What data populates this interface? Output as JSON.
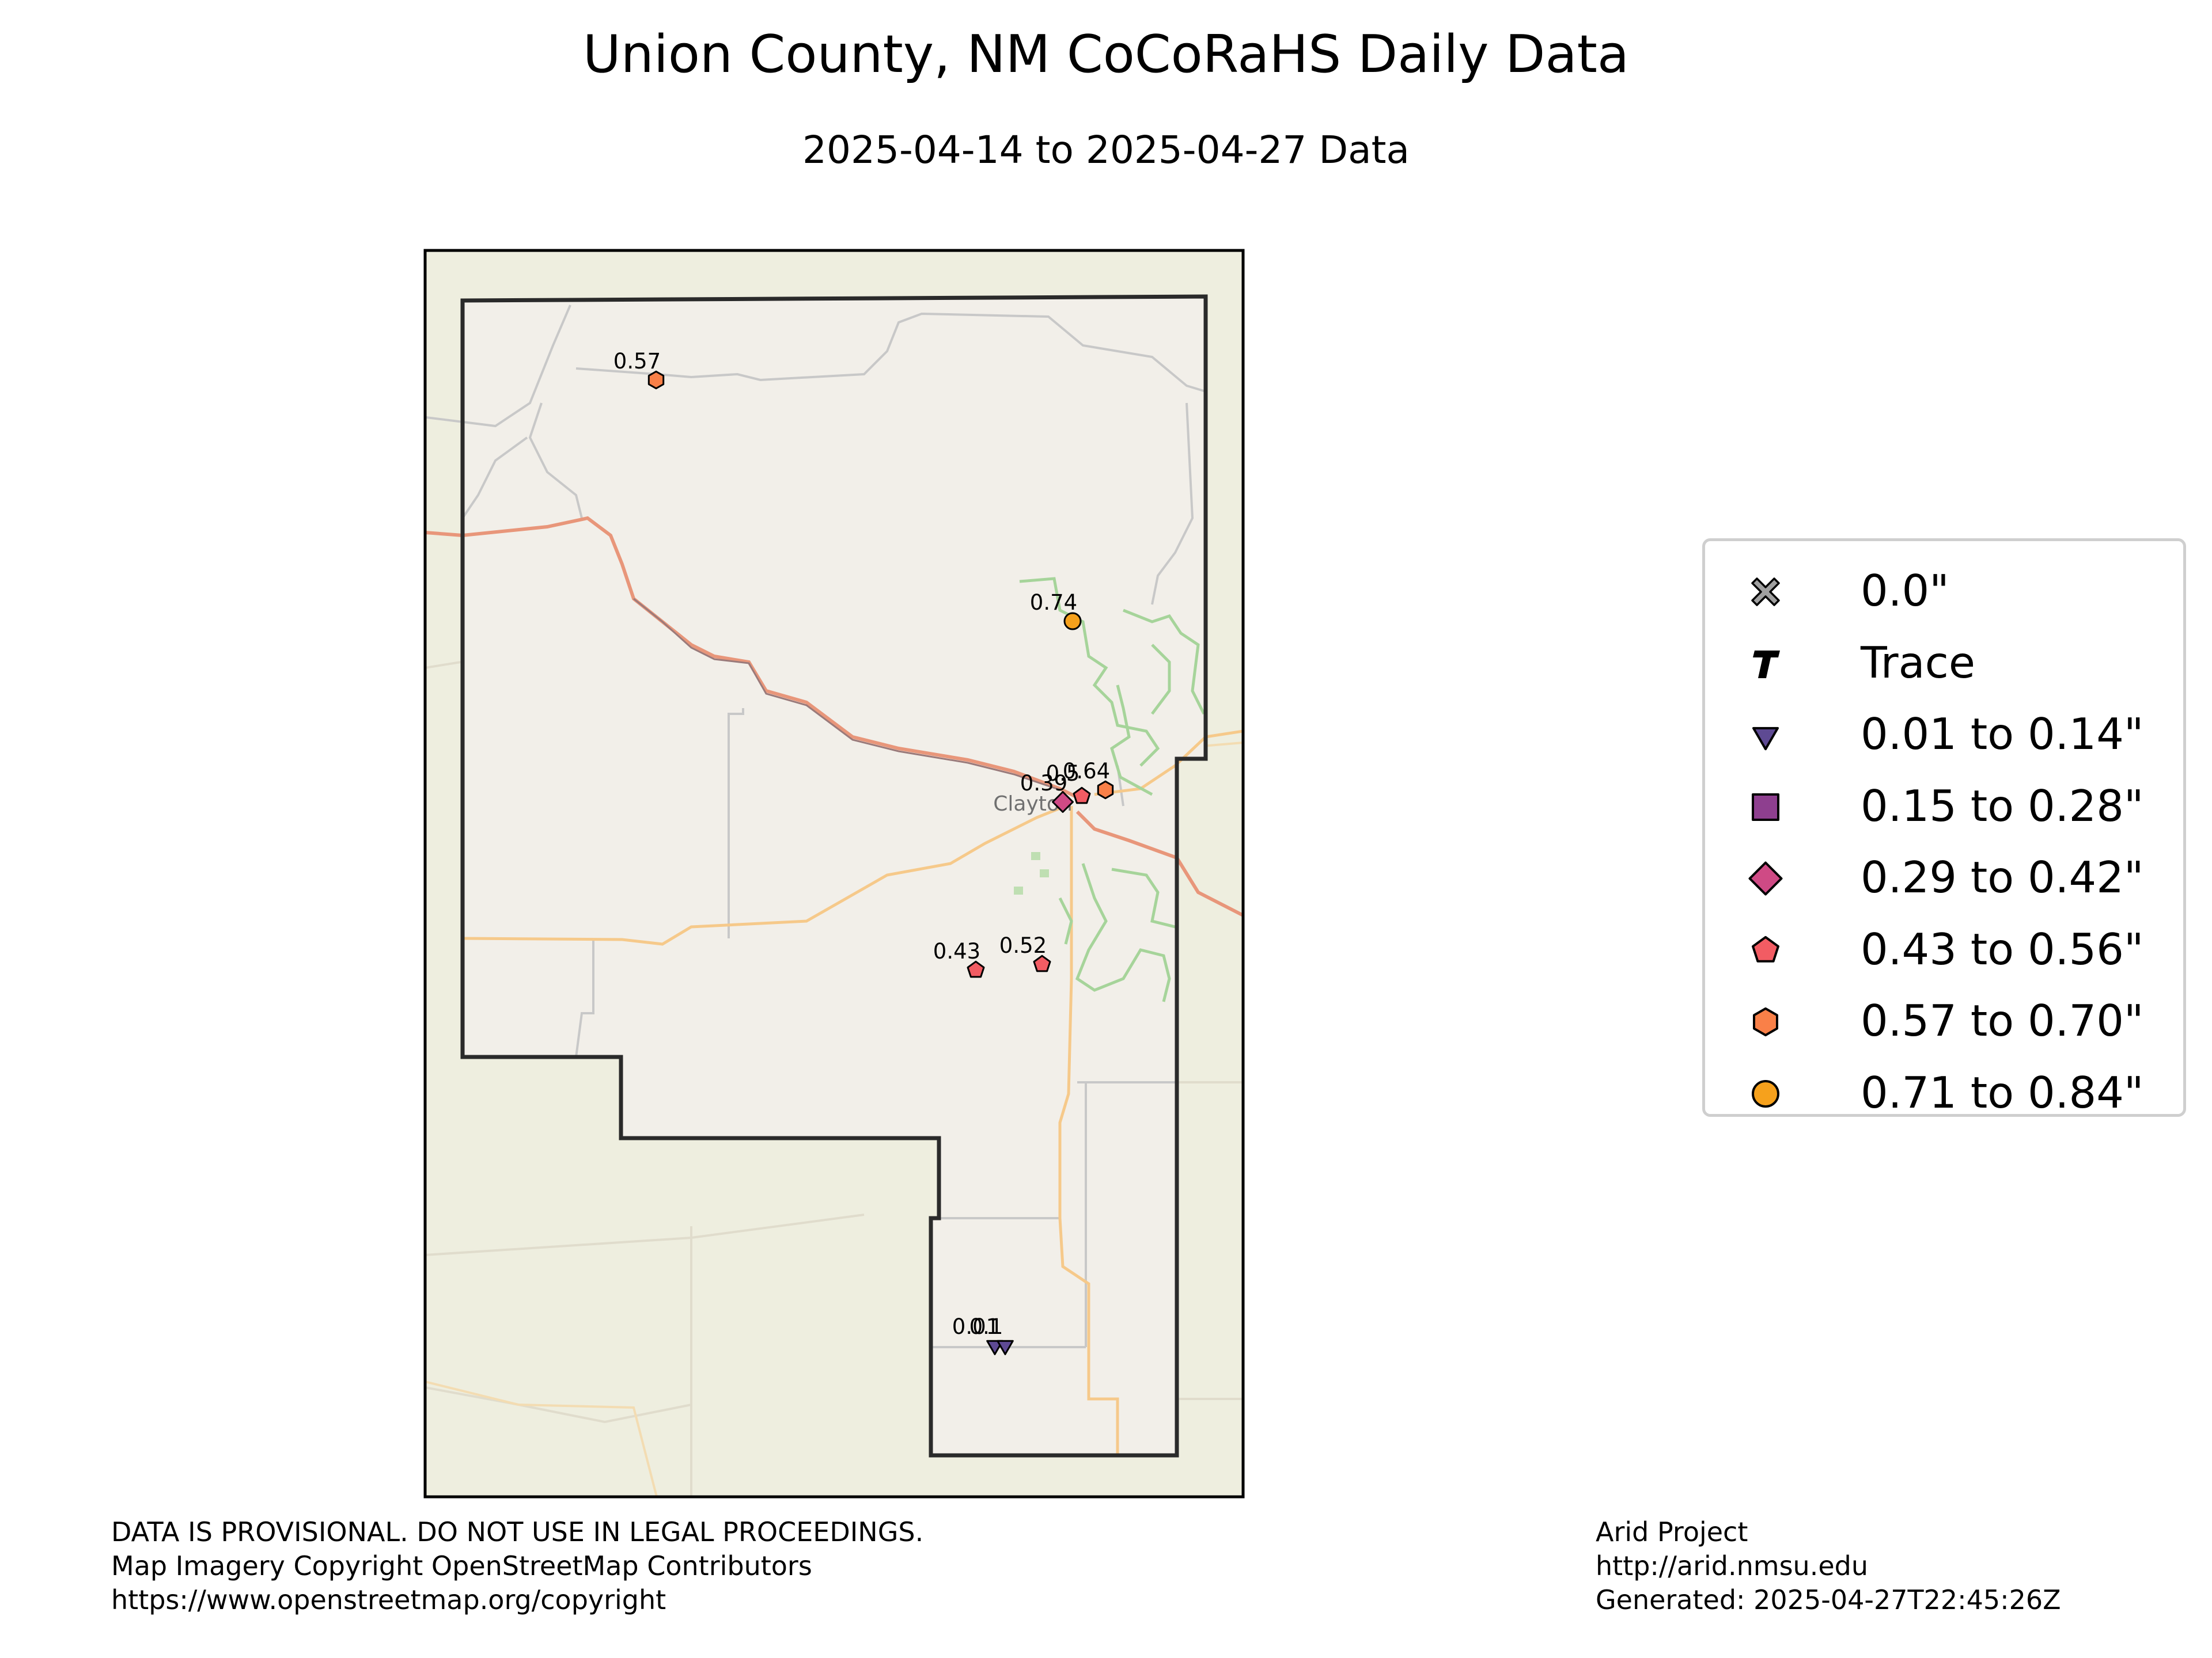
{
  "title": "Union County, NM CoCoRaHS Daily Data",
  "subtitle": "2025-04-14 to 2025-04-27 Data",
  "map": {
    "city_label": "Clayton",
    "colors": {
      "basemap": "#eeeedf",
      "county_fill": "#f2efe9",
      "county_border": "#2a2a2a",
      "highway": "#e8967a",
      "road": "#f6c98a",
      "minor_road": "#c8c8c8",
      "grassland": "#a6d49a"
    },
    "stations": [
      {
        "value_label": "0.57",
        "category": "0.57-0.70"
      },
      {
        "value_label": "0.74",
        "category": "0.71-0.84"
      },
      {
        "value_label": "0.39",
        "category": "0.29-0.42"
      },
      {
        "value_label": "0.5",
        "category": "0.43-0.56"
      },
      {
        "value_label": "0.64",
        "category": "0.57-0.70"
      },
      {
        "value_label": "0.43",
        "category": "0.43-0.56"
      },
      {
        "value_label": "0.52",
        "category": "0.43-0.56"
      },
      {
        "value_label": "0.01",
        "category": "0.01-0.14"
      },
      {
        "value_label": "0.1",
        "category": "0.01-0.14"
      }
    ]
  },
  "legend": {
    "items": [
      {
        "label": "0.0\"",
        "symbol": "x-icon",
        "color": "#a0a0a0"
      },
      {
        "label": "Trace",
        "symbol": "t-icon",
        "color": "#000000"
      },
      {
        "label": "0.01 to 0.14\"",
        "symbol": "triangle-down-icon",
        "color": "#5e4a93"
      },
      {
        "label": "0.15 to 0.28\"",
        "symbol": "square-icon",
        "color": "#8e3f8f"
      },
      {
        "label": "0.29 to 0.42\"",
        "symbol": "diamond-icon",
        "color": "#cf4a85"
      },
      {
        "label": "0.43 to 0.56\"",
        "symbol": "pentagon-icon",
        "color": "#f25c63"
      },
      {
        "label": "0.57 to 0.70\"",
        "symbol": "hexagon-icon",
        "color": "#f98048"
      },
      {
        "label": "0.71 to 0.84\"",
        "symbol": "circle-icon",
        "color": "#f6a11c"
      }
    ]
  },
  "footer": {
    "left_lines": [
      "DATA IS PROVISIONAL. DO NOT USE IN LEGAL PROCEEDINGS.",
      "Map Imagery Copyright OpenStreetMap Contributors",
      "https://www.openstreetmap.org/copyright"
    ],
    "right_lines": [
      "Arid Project",
      "http://arid.nmsu.edu",
      "Generated: 2025-04-27T22:45:26Z"
    ]
  }
}
